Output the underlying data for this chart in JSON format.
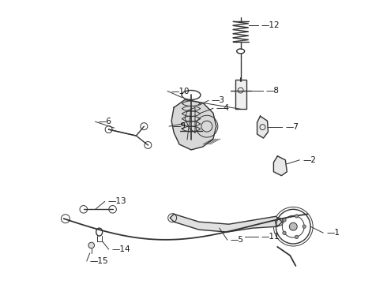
{
  "bg_color": "#ffffff",
  "line_color": "#333333",
  "fig_width": 4.9,
  "fig_height": 3.6,
  "dpi": 100
}
